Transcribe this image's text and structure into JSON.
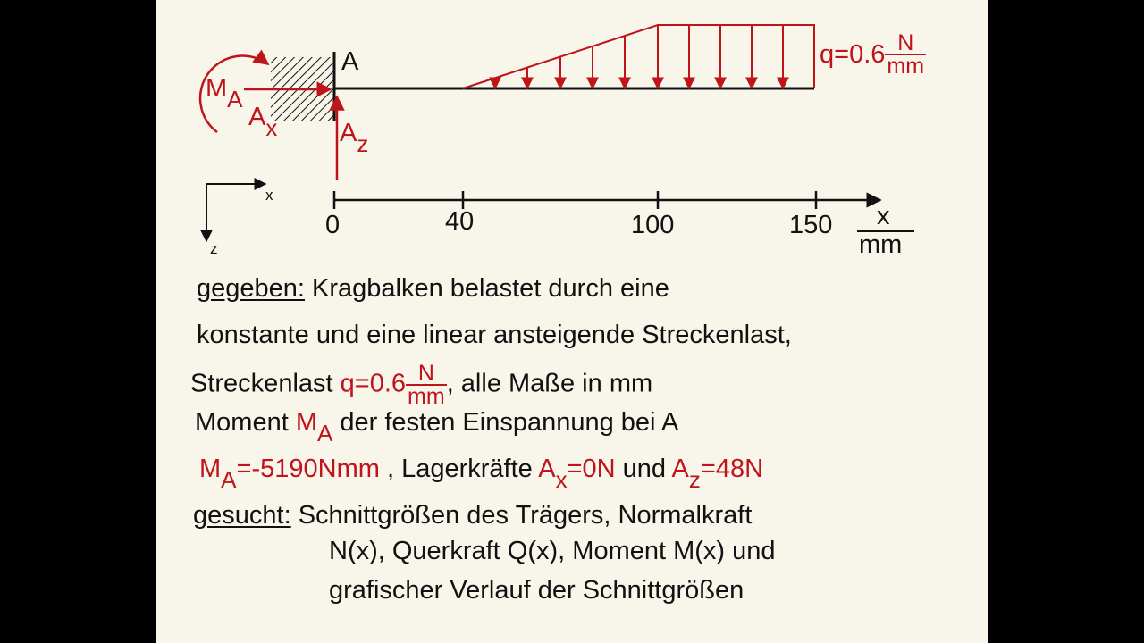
{
  "diagram": {
    "support_label": "A",
    "moment_label": {
      "main": "M",
      "sub": "A"
    },
    "ax_label": {
      "main": "A",
      "sub": "x"
    },
    "az_label": {
      "main": "A",
      "sub": "z"
    },
    "q_label": {
      "prefix": "q=0.6",
      "num": "N",
      "den": "mm"
    },
    "coord_x": "x",
    "coord_z": "z",
    "axis_ticks": [
      "0",
      "40",
      "100",
      "150"
    ],
    "axis_unit": {
      "num": "x",
      "den": "mm"
    }
  },
  "text": {
    "given_label": "gegeben:",
    "line1": "Kragbalken belastet durch eine",
    "line2": "konstante und eine linear ansteigende Streckenlast,",
    "line3_pre": "Streckenlast",
    "line3_q": "q=0.6",
    "line3_num": "N",
    "line3_den": "mm",
    "line3_post": ", alle Maße in mm",
    "line4_pre": "Moment",
    "line4_M": "M",
    "line4_sub": "A",
    "line4_post": "der festen Einspannung bei A",
    "line5_M": "M",
    "line5_sub": "A",
    "line5_val": "=-5190Nmm",
    "line5_mid": ", Lagerkräfte",
    "line5_A1": "A",
    "line5_sub1": "x",
    "line5_v1": "=0N",
    "line5_und": "und",
    "line5_A2": "A",
    "line5_sub2": "z",
    "line5_v2": "=48N",
    "sought_label": "gesucht:",
    "line6": "Schnittgrößen des Trägers, Normalkraft",
    "line7": "N(x), Querkraft Q(x), Moment M(x) und",
    "line8": "grafischer Verlauf der Schnittgrößen"
  }
}
